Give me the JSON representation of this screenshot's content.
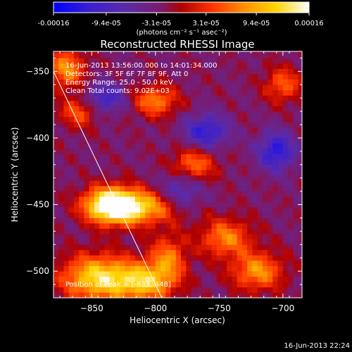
{
  "colorbar": {
    "tick_labels": [
      "-0.00016",
      "-9.4e-05",
      "-3.1e-05",
      "3.1e-05",
      "9.4e-05",
      "0.00016"
    ],
    "range": [
      -0.00016,
      0.00016
    ],
    "unit_label": "(photons cm⁻² s⁻¹ asec⁻²)",
    "colors": [
      "#0000ff",
      "#3a1fcf",
      "#5b2aa7",
      "#7a1b6d",
      "#b00000",
      "#ff3300",
      "#ff8c00",
      "#ffd400",
      "#ffffff"
    ]
  },
  "chart_data": {
    "type": "heatmap",
    "title": "Reconstructed RHESSI Image",
    "xlabel": "Heliocentric X (arcsec)",
    "ylabel": "Heliocentric Y (arcsec)",
    "xlim": [
      -880,
      -685
    ],
    "ylim": [
      -520,
      -335
    ],
    "x_ticks": [
      -850,
      -800,
      -750,
      -700
    ],
    "y_ticks": [
      -350,
      -400,
      -450,
      -500
    ],
    "annotations": [
      "16-Jun-2013 13:56:00.000 to 14:01:34.000",
      "Detectors: 3F 5F 6F 7F 8F 9F, Att 0",
      "Energy Range: 25.0 - 50.0 keV",
      "Clean      Total counts: 9.02E+03"
    ],
    "peak_label": "Position of Peak = [-833,-448]",
    "peak": [
      -833,
      -448
    ],
    "limb_line": [
      [
        -880,
        -350
      ],
      [
        -795,
        -520
      ]
    ],
    "sources": [
      {
        "x": -835,
        "y": -450,
        "amp": 1.0,
        "sx": 14,
        "sy": 9
      },
      {
        "x": -815,
        "y": -452,
        "amp": 0.75,
        "sx": 22,
        "sy": 9
      },
      {
        "x": -845,
        "y": -505,
        "amp": 0.85,
        "sx": 20,
        "sy": 12
      },
      {
        "x": -808,
        "y": -508,
        "amp": 0.7,
        "sx": 16,
        "sy": 10
      },
      {
        "x": -870,
        "y": -348,
        "amp": 0.6,
        "sx": 10,
        "sy": 10
      },
      {
        "x": -800,
        "y": -372,
        "amp": 0.55,
        "sx": 12,
        "sy": 8
      },
      {
        "x": -770,
        "y": -420,
        "amp": 0.5,
        "sx": 12,
        "sy": 9
      },
      {
        "x": -745,
        "y": -475,
        "amp": 0.55,
        "sx": 14,
        "sy": 10
      },
      {
        "x": -720,
        "y": -500,
        "amp": 0.6,
        "sx": 14,
        "sy": 10
      },
      {
        "x": -700,
        "y": -360,
        "amp": 0.45,
        "sx": 10,
        "sy": 9
      },
      {
        "x": -790,
        "y": -490,
        "amp": 0.5,
        "sx": 10,
        "sy": 12
      },
      {
        "x": -860,
        "y": -380,
        "amp": 0.45,
        "sx": 10,
        "sy": 8
      },
      {
        "x": -760,
        "y": -395,
        "amp": -0.55,
        "sx": 12,
        "sy": 9
      },
      {
        "x": -705,
        "y": -410,
        "amp": -0.6,
        "sx": 10,
        "sy": 10
      },
      {
        "x": -840,
        "y": -370,
        "amp": -0.45,
        "sx": 12,
        "sy": 8
      },
      {
        "x": -780,
        "y": -440,
        "amp": -0.4,
        "sx": 12,
        "sy": 10
      }
    ]
  },
  "footer": {
    "timestamp": "16-Jun-2013 22:24"
  }
}
